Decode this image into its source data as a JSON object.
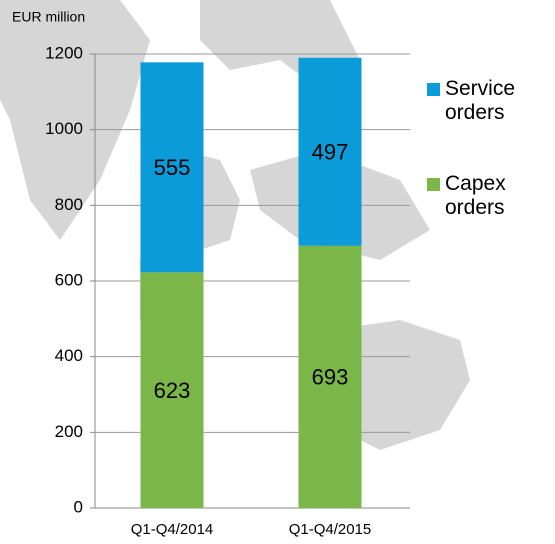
{
  "chart_data": {
    "type": "stacked_bar",
    "y_label": "EUR million",
    "categories": [
      "Q1-Q4/2014",
      "Q1-Q4/2015"
    ],
    "series": [
      {
        "name": "Capex orders",
        "color": "#7ab648",
        "values": [
          623,
          693
        ]
      },
      {
        "name": "Service orders",
        "color": "#0a9bd8",
        "values": [
          555,
          497
        ]
      }
    ],
    "ylim": [
      0,
      1200
    ],
    "yticks": [
      0,
      200,
      400,
      600,
      800,
      1000,
      1200
    ],
    "grid": true
  }
}
